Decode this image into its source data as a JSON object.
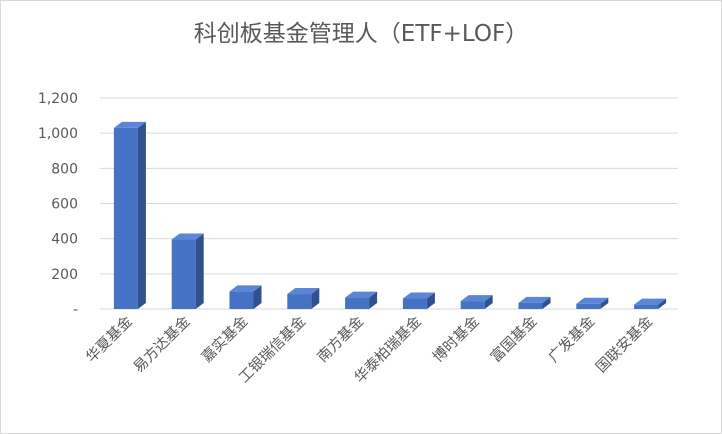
{
  "chart_data": {
    "type": "bar",
    "title": "科创板基金管理人（ETF+LOF）",
    "categories": [
      "华夏基金",
      "易方达基金",
      "嘉实基金",
      "工银瑞信基金",
      "南方基金",
      "华泰柏瑞基金",
      "博时基金",
      "富国基金",
      "广发基金",
      "国联安基金"
    ],
    "values": [
      1030,
      395,
      100,
      85,
      65,
      60,
      45,
      35,
      30,
      25
    ],
    "ylim": [
      0,
      1200
    ],
    "yticks": [
      0,
      200,
      400,
      600,
      800,
      1000,
      1200
    ],
    "ytick_labels": [
      "-",
      "200",
      "400",
      "600",
      "800",
      "1,000",
      "1,200"
    ],
    "xlabel": "",
    "ylabel": "",
    "grid": true,
    "bar_color": "#4472c4",
    "bar_side_color": "#2f528f",
    "bar_top_color": "#5b85d6"
  }
}
